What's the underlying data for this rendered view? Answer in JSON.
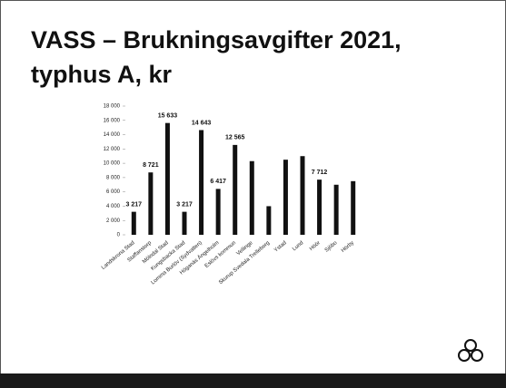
{
  "chart_data": {
    "type": "bar",
    "title": "VASS – Brukningsavgifter 2021,",
    "subtitle": "typhus A, kr",
    "categories": [
      "Landskrona Stad",
      "Staffanstorp",
      "Mölndal Stad",
      "Kungsbacka Stad",
      "Lomma Burlöv (Sydvatten)",
      "Höganäs Ängelholm",
      "Eslövs kommun",
      "Vellinge",
      "Skurup Svedala Trelleborg",
      "Ystad",
      "Lund",
      "Höör",
      "Sjöbo",
      "Hörby"
    ],
    "values": [
      3217,
      8721,
      15633,
      3217,
      14643,
      6417,
      12565,
      10300,
      4000,
      10500,
      11000,
      7712,
      7000,
      7500
    ],
    "value_labels": [
      "3 217",
      "8 721",
      "15 633",
      "3 217",
      "14 643",
      "6 417",
      "12 565",
      null,
      null,
      null,
      null,
      "7 712",
      null,
      null
    ],
    "color": "#111111",
    "ylim": [
      0,
      18000
    ],
    "yticks": [
      0,
      {
        "value": 2000,
        "label": "2 000"
      },
      {
        "value": 4000,
        "label": "4 000"
      },
      {
        "value": 6000,
        "label": "6 000"
      },
      {
        "value": 8000,
        "label": "8 000"
      },
      {
        "value": 10000,
        "label": "10 000"
      },
      {
        "value": 12000,
        "label": "12 000"
      },
      {
        "value": 14000,
        "label": "14 000"
      },
      {
        "value": 16000,
        "label": "16 000"
      },
      {
        "value": 18000,
        "label": "18 000"
      }
    ],
    "grid": false
  }
}
